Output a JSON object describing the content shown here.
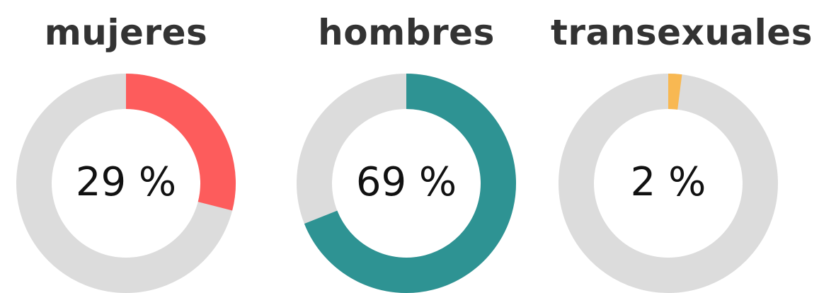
{
  "chart_data": [
    {
      "type": "pie",
      "variant": "donut",
      "title": "mujeres",
      "value": 29,
      "label": "29 %",
      "unit": "%",
      "color": "#fd5c5c",
      "track_color": "#dcdcdc"
    },
    {
      "type": "pie",
      "variant": "donut",
      "title": "hombres",
      "value": 69,
      "label": "69 %",
      "unit": "%",
      "color": "#2e9393",
      "track_color": "#dcdcdc"
    },
    {
      "type": "pie",
      "variant": "donut",
      "title": "transexuales",
      "value": 2,
      "label": "2 %",
      "unit": "%",
      "color": "#f8b852",
      "track_color": "#dcdcdc"
    }
  ]
}
